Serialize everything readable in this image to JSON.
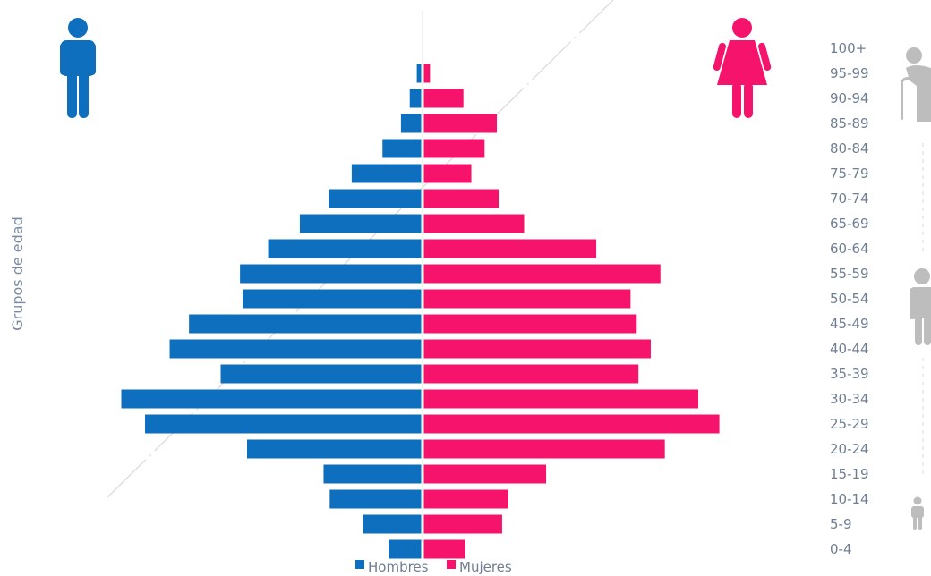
{
  "chart_data": {
    "type": "bar",
    "subtype": "population-pyramid",
    "title": "",
    "ylabel": "Grupos de edad",
    "xlabel": "",
    "categories": [
      "0-4",
      "5-9",
      "10-14",
      "15-19",
      "20-24",
      "25-29",
      "30-34",
      "35-39",
      "40-44",
      "45-49",
      "50-54",
      "55-59",
      "60-64",
      "65-69",
      "70-74",
      "75-79",
      "80-84",
      "85-89",
      "90-94",
      "95-99",
      "100+"
    ],
    "series": [
      {
        "name": "Hombres",
        "color": "#0d6fbd",
        "values": [
          37,
          66,
          104,
          111,
          198,
          314,
          341,
          228,
          286,
          264,
          203,
          206,
          174,
          138,
          105,
          79,
          44,
          23,
          13,
          5,
          0
        ]
      },
      {
        "name": "Mujeres",
        "color": "#f5136b",
        "values": [
          47,
          89,
          96,
          139,
          274,
          336,
          312,
          244,
          258,
          242,
          235,
          269,
          196,
          114,
          85,
          54,
          69,
          83,
          45,
          7,
          0
        ]
      }
    ],
    "xlim": [
      -341,
      341
    ],
    "grid": false,
    "legend": "bottom-center",
    "legend_entries": [
      "Hombres",
      "Mujeres"
    ]
  },
  "icons": {
    "male": "male-figure-icon",
    "female": "female-figure-icon",
    "elderly": "elderly-person-icon",
    "adult": "adult-person-icon",
    "child": "child-person-icon"
  },
  "colors": {
    "male": "#0d6fbd",
    "female": "#f5136b",
    "icon_gray": "#bdbdbd",
    "text": "#6f7d93"
  }
}
